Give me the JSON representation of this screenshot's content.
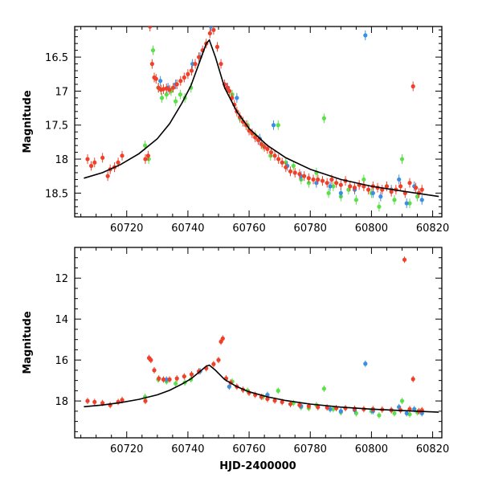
{
  "chart_data": [
    {
      "type": "scatter",
      "title": "",
      "xlabel": "",
      "ylabel": "Magnitude",
      "xlim": [
        60703,
        60823
      ],
      "ylim": [
        18.85,
        16.05
      ],
      "y_inverted": true,
      "x_ticks": [
        60720,
        60740,
        60760,
        60780,
        60800,
        60820
      ],
      "y_ticks": [
        16.5,
        17,
        17.5,
        18,
        18.5
      ],
      "x_tick_labels": [
        "60720",
        "60740",
        "60760",
        "60780",
        "60800",
        "60820"
      ],
      "y_tick_labels": [
        "16.5",
        "17",
        "17.5",
        "18",
        "18.5"
      ],
      "grid": false,
      "legend": "none",
      "series": [
        {
          "color": "#f0402a",
          "x": [
            60707.2,
            60708.4,
            60709.5,
            60712.1,
            60713.8,
            60714.6,
            60716.0,
            60717.2,
            60718.5,
            60726.1,
            60727.0,
            60727.6,
            60728.3,
            60729.0,
            60729.6,
            60730.4,
            60731.2,
            60732.0,
            60733.0,
            60734.0,
            60735.2,
            60736.4,
            60737.6,
            60738.8,
            60740.0,
            60741.2,
            60742.4,
            60743.6,
            60744.8,
            60746.0,
            60747.2,
            60748.4,
            60749.6,
            60750.8,
            60752.0,
            60752.8,
            60753.6,
            60754.4,
            60755.2,
            60756.0,
            60757.0,
            60758.0,
            60759.0,
            60760.0,
            60761.0,
            60762.0,
            60763.0,
            60764.0,
            60765.0,
            60766.0,
            60767.2,
            60768.4,
            60769.6,
            60770.8,
            60772.0,
            60773.5,
            60775.0,
            60776.5,
            60778.0,
            60779.5,
            60781.0,
            60782.5,
            60784.0,
            60785.5,
            60787.0,
            60788.5,
            60790.0,
            60791.5,
            60793.0,
            60794.5,
            60796.0,
            60797.5,
            60799.0,
            60800.5,
            60802.0,
            60803.5,
            60805.0,
            60806.5,
            60808.0,
            60809.5,
            60811.0,
            60812.5,
            60813.6,
            60814.5,
            60815.5,
            60816.5
          ],
          "y": [
            18.0,
            18.1,
            18.05,
            17.98,
            18.25,
            18.15,
            18.12,
            18.05,
            17.95,
            18.0,
            17.95,
            16.05,
            16.6,
            16.8,
            16.82,
            16.95,
            16.98,
            16.97,
            16.96,
            16.98,
            16.95,
            16.9,
            16.85,
            16.8,
            16.75,
            16.7,
            16.6,
            16.5,
            16.4,
            16.3,
            16.15,
            16.1,
            16.35,
            16.6,
            16.9,
            16.95,
            17.0,
            17.1,
            17.2,
            17.3,
            17.38,
            17.45,
            17.5,
            17.58,
            17.62,
            17.68,
            17.72,
            17.78,
            17.82,
            17.85,
            17.9,
            17.95,
            18.0,
            18.05,
            18.12,
            18.18,
            18.2,
            18.22,
            18.25,
            18.28,
            18.3,
            18.3,
            18.32,
            18.35,
            18.3,
            18.35,
            18.38,
            18.32,
            18.4,
            18.42,
            18.38,
            18.4,
            18.45,
            18.4,
            18.42,
            18.45,
            18.4,
            18.48,
            18.45,
            18.4,
            18.5,
            18.35,
            16.93,
            18.42,
            18.5,
            18.45
          ]
        },
        {
          "color": "#3a8fe0",
          "x": [
            60731.0,
            60733.5,
            60736.0,
            60741.5,
            60744.0,
            60747.5,
            60753.0,
            60756.0,
            60763.5,
            60768.0,
            60772.5,
            60777.0,
            60782.0,
            60786.5,
            60790.0,
            60794.5,
            60798.0,
            60800.5,
            60803.0,
            60806.5,
            60809.0,
            60811.5,
            60814.0,
            60816.5
          ],
          "y": [
            16.85,
            16.95,
            16.9,
            16.6,
            16.5,
            16.05,
            16.95,
            17.1,
            17.7,
            17.5,
            18.1,
            18.25,
            18.35,
            18.4,
            18.5,
            18.45,
            16.18,
            18.5,
            18.55,
            18.45,
            18.3,
            18.65,
            18.4,
            18.6
          ]
        },
        {
          "color": "#5ce04a",
          "x": [
            60726.0,
            60727.2,
            60728.6,
            60730.3,
            60731.5,
            60733.0,
            60734.5,
            60736.0,
            60737.5,
            60739.0,
            60741.0,
            60754.5,
            60757.0,
            60759.5,
            60762.0,
            60764.5,
            60767.0,
            60769.5,
            60772.0,
            60774.5,
            60777.0,
            60779.5,
            60782.0,
            60784.5,
            60786.0,
            60787.5,
            60790.0,
            60792.5,
            60795.0,
            60797.5,
            60800.0,
            60802.5,
            60805.0,
            60807.5,
            60810.0,
            60812.5,
            60815.0
          ],
          "y": [
            17.8,
            18.0,
            16.4,
            16.95,
            17.1,
            17.05,
            17.0,
            17.15,
            17.05,
            17.1,
            16.95,
            17.05,
            17.4,
            17.5,
            17.65,
            17.8,
            17.95,
            17.5,
            18.05,
            18.1,
            18.3,
            18.35,
            18.2,
            17.4,
            18.5,
            18.4,
            18.55,
            18.45,
            18.6,
            18.3,
            18.5,
            18.7,
            18.4,
            18.6,
            18.0,
            18.65,
            18.55
          ]
        },
        {
          "color": "#000000",
          "x": [
            60706,
            60712,
            60718,
            60724,
            60730,
            60734,
            60738,
            60741,
            60744,
            60746,
            60747,
            60749,
            60752,
            60756,
            60760,
            60766,
            60772,
            60780,
            60790,
            60800,
            60810,
            60822
          ],
          "y": [
            18.28,
            18.2,
            18.08,
            17.92,
            17.7,
            17.48,
            17.18,
            16.92,
            16.55,
            16.3,
            16.25,
            16.5,
            16.95,
            17.3,
            17.55,
            17.8,
            17.98,
            18.15,
            18.3,
            18.4,
            18.47,
            18.55
          ]
        }
      ]
    },
    {
      "type": "scatter",
      "title": "",
      "xlabel": "HJD-2400000",
      "ylabel": "Magnitude",
      "xlim": [
        60703,
        60823
      ],
      "ylim": [
        19.8,
        10.5
      ],
      "y_inverted": true,
      "x_ticks": [
        60720,
        60740,
        60760,
        60780,
        60800,
        60820
      ],
      "y_ticks": [
        12,
        14,
        16,
        18
      ],
      "x_tick_labels": [
        "60720",
        "60740",
        "60760",
        "60780",
        "60800",
        "60820"
      ],
      "y_tick_labels": [
        "12",
        "14",
        "16",
        "18"
      ],
      "grid": false,
      "legend": "none",
      "series": [
        {
          "color": "#f0402a",
          "x": [
            60707.2,
            60709.5,
            60712.1,
            60714.6,
            60717.2,
            60718.5,
            60726.1,
            60727.3,
            60727.9,
            60729.0,
            60730.5,
            60732.0,
            60734.0,
            60736.4,
            60738.8,
            60741.2,
            60743.6,
            60746.0,
            60748.4,
            60750.0,
            60750.8,
            60751.4,
            60752.5,
            60754.0,
            60756.0,
            60758.0,
            60760.0,
            60762.0,
            60764.0,
            60766.0,
            60768.4,
            60770.8,
            60773.5,
            60776.5,
            60779.5,
            60782.5,
            60785.5,
            60788.5,
            60791.5,
            60794.5,
            60797.5,
            60800.5,
            60803.5,
            60806.5,
            60809.5,
            60810.8,
            60812.5,
            60813.6,
            60815.5,
            60816.5
          ],
          "y": [
            18.0,
            18.05,
            18.1,
            18.2,
            18.05,
            17.95,
            18.0,
            15.9,
            16.0,
            16.5,
            16.9,
            16.95,
            16.95,
            16.9,
            16.8,
            16.7,
            16.55,
            16.4,
            16.2,
            16.0,
            15.1,
            14.95,
            16.9,
            17.1,
            17.3,
            17.45,
            17.6,
            17.7,
            17.8,
            17.9,
            17.98,
            18.05,
            18.15,
            18.2,
            18.25,
            18.3,
            18.32,
            18.35,
            18.35,
            18.38,
            18.4,
            18.4,
            18.42,
            18.45,
            18.45,
            11.1,
            18.4,
            16.93,
            18.5,
            18.45
          ]
        },
        {
          "color": "#3a8fe0",
          "x": [
            60733.0,
            60744.0,
            60753.5,
            60766.0,
            60777.0,
            60786.5,
            60790.0,
            60794.5,
            60798.0,
            60800.5,
            60806.5,
            60809.0,
            60811.5,
            60814.0,
            60816.5
          ],
          "y": [
            16.95,
            16.55,
            17.3,
            17.7,
            18.25,
            18.4,
            18.5,
            18.45,
            16.18,
            18.5,
            18.45,
            18.3,
            18.6,
            18.4,
            18.6
          ]
        },
        {
          "color": "#5ce04a",
          "x": [
            60726.0,
            60730.3,
            60733.0,
            60736.0,
            60739.0,
            60741.0,
            60754.5,
            60759.5,
            60764.5,
            60769.5,
            60774.5,
            60777.0,
            60779.5,
            60782.0,
            60784.5,
            60787.5,
            60790.0,
            60795.0,
            60800.0,
            60802.5,
            60807.5,
            60810.0,
            60812.5,
            60815.0
          ],
          "y": [
            17.8,
            16.95,
            17.05,
            17.15,
            17.1,
            16.95,
            17.05,
            17.5,
            17.8,
            17.5,
            18.1,
            18.3,
            18.35,
            18.2,
            17.4,
            18.4,
            18.55,
            18.6,
            18.5,
            18.7,
            18.6,
            18.0,
            18.65,
            18.55
          ]
        },
        {
          "color": "#000000",
          "x": [
            60706,
            60712,
            60718,
            60724,
            60730,
            60734,
            60738,
            60741,
            60744,
            60746,
            60747,
            60749,
            60752,
            60756,
            60760,
            60766,
            60772,
            60780,
            60790,
            60800,
            60810,
            60822
          ],
          "y": [
            18.28,
            18.2,
            18.08,
            17.92,
            17.7,
            17.48,
            17.18,
            16.92,
            16.55,
            16.3,
            16.25,
            16.5,
            16.95,
            17.3,
            17.55,
            17.8,
            17.98,
            18.15,
            18.3,
            18.4,
            18.47,
            18.55
          ]
        }
      ]
    }
  ]
}
